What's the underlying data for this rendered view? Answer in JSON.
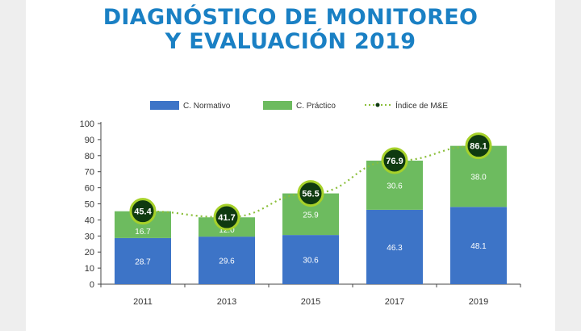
{
  "title_line1": "DIAGNÓSTICO DE MONITOREO",
  "title_line2": "Y EVALUACIÓN 2019",
  "colors": {
    "title": "#1a80c4",
    "normativo": "#3d74c7",
    "practico": "#6dbb5f",
    "index_line": "#8bbf3a",
    "index_marker": "#0f3a10",
    "index_ring": "#a6d12a"
  },
  "chart_data": {
    "type": "bar",
    "stacked": true,
    "categories": [
      "2011",
      "2013",
      "2015",
      "2017",
      "2019"
    ],
    "ylim": [
      0,
      100
    ],
    "yticks": [
      0,
      10,
      20,
      30,
      40,
      50,
      60,
      70,
      80,
      90,
      100
    ],
    "grid": false,
    "legend_position": "top",
    "series": [
      {
        "name": "C. Normativo",
        "values": [
          28.7,
          29.6,
          30.6,
          46.3,
          48.1
        ]
      },
      {
        "name": "C. Práctico",
        "values": [
          16.7,
          12.0,
          25.9,
          30.6,
          38.0
        ]
      }
    ],
    "line_series": {
      "name": "Índice de M&E",
      "values": [
        45.4,
        41.7,
        56.5,
        76.9,
        86.1
      ],
      "style": "dotted"
    },
    "value_labels": {
      "normativo": [
        "28.7",
        "29.6",
        "30.6",
        "46.3",
        "48.1"
      ],
      "practico": [
        "16.7",
        "12.0",
        "25.9",
        "30.6",
        "38.0"
      ],
      "index": [
        "45.4",
        "41.7",
        "56.5",
        "76.9",
        "86.1"
      ]
    }
  }
}
